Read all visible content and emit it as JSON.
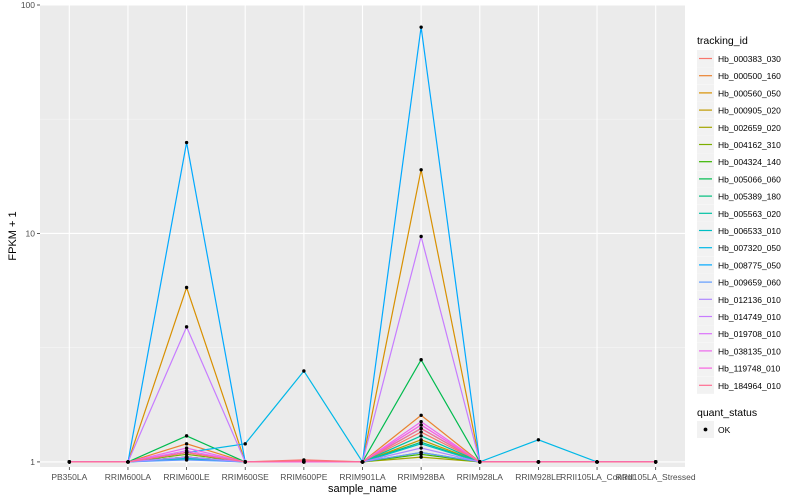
{
  "chart_data": {
    "type": "line",
    "xlabel": "sample_name",
    "ylabel": "FPKM + 1",
    "y_scale": "log10",
    "ylim": [
      0.95,
      100
    ],
    "y_ticks": [
      {
        "value": 1,
        "label": "1"
      },
      {
        "value": 10,
        "label": "10"
      },
      {
        "value": 100,
        "label": "100"
      }
    ],
    "grid": true,
    "categories": [
      "PB350LA",
      "RRIM600LA",
      "RRIM600LE",
      "RRIM600SE",
      "RRIM600PE",
      "RRIM901LA",
      "RRIM928BA",
      "RRIM928LA",
      "RRIM928LE",
      "RRII105LA_Control",
      "RRII105LA_Stressed"
    ],
    "series": [
      {
        "name": "Hb_000383_030",
        "color": "#F8766D",
        "values": [
          1,
          1,
          1.05,
          1,
          1.02,
          1,
          1.35,
          1,
          1,
          1,
          1
        ]
      },
      {
        "name": "Hb_000500_160",
        "color": "#EA8331",
        "values": [
          1,
          1,
          1.2,
          1,
          1,
          1,
          1.6,
          1,
          1,
          1,
          1
        ]
      },
      {
        "name": "Hb_000560_050",
        "color": "#D89000",
        "values": [
          1,
          1,
          5.8,
          1,
          1,
          1,
          19,
          1,
          1,
          1,
          1
        ]
      },
      {
        "name": "Hb_000905_020",
        "color": "#C09B00",
        "values": [
          1,
          1,
          1.1,
          1,
          1,
          1,
          1.25,
          1,
          1,
          1,
          1
        ]
      },
      {
        "name": "Hb_002659_020",
        "color": "#A3A500",
        "values": [
          1,
          1,
          1.05,
          1,
          1,
          1,
          1.05,
          1,
          1,
          1,
          1
        ]
      },
      {
        "name": "Hb_004162_310",
        "color": "#7CAE00",
        "values": [
          1,
          1,
          1.08,
          1,
          1,
          1,
          1.1,
          1,
          1,
          1,
          1
        ]
      },
      {
        "name": "Hb_004324_140",
        "color": "#39B600",
        "values": [
          1,
          1,
          1.05,
          1,
          1,
          1,
          1.08,
          1,
          1,
          1,
          1
        ]
      },
      {
        "name": "Hb_005066_060",
        "color": "#00BB4E",
        "values": [
          1,
          1,
          1.3,
          1,
          1,
          1,
          2.8,
          1,
          1,
          1,
          1
        ]
      },
      {
        "name": "Hb_005389_180",
        "color": "#00BF7D",
        "values": [
          1,
          1,
          1.05,
          1,
          1,
          1,
          1.22,
          1,
          1,
          1,
          1
        ]
      },
      {
        "name": "Hb_005563_020",
        "color": "#00C1A3",
        "values": [
          1,
          1,
          1.03,
          1,
          1,
          1,
          1.3,
          1,
          1,
          1,
          1
        ]
      },
      {
        "name": "Hb_006533_010",
        "color": "#00BFC4",
        "values": [
          1,
          1,
          1.04,
          1,
          1,
          1,
          1.2,
          1,
          1,
          1,
          1
        ]
      },
      {
        "name": "Hb_007320_050",
        "color": "#00B8E7",
        "values": [
          1,
          1,
          1.1,
          1.2,
          2.5,
          1,
          1.4,
          1,
          1.25,
          1,
          1
        ]
      },
      {
        "name": "Hb_008775_050",
        "color": "#00A9FF",
        "values": [
          1,
          1,
          25,
          1,
          1,
          1,
          80,
          1,
          1,
          1,
          1
        ]
      },
      {
        "name": "Hb_009659_060",
        "color": "#619CFF",
        "values": [
          1,
          1,
          1.02,
          1,
          1,
          1,
          1.1,
          1,
          1,
          1,
          1
        ]
      },
      {
        "name": "Hb_012136_010",
        "color": "#AE87FF",
        "values": [
          1,
          1,
          1.05,
          1,
          1,
          1,
          1.15,
          1,
          1,
          1,
          1
        ]
      },
      {
        "name": "Hb_014749_010",
        "color": "#C77CFF",
        "values": [
          1,
          1,
          3.9,
          1,
          1,
          1,
          9.7,
          1,
          1,
          1,
          1
        ]
      },
      {
        "name": "Hb_019708_010",
        "color": "#DB72FB",
        "values": [
          1,
          1,
          1.12,
          1,
          1,
          1,
          1.45,
          1,
          1,
          1,
          1
        ]
      },
      {
        "name": "Hb_038135_010",
        "color": "#ED68ED",
        "values": [
          1,
          1,
          1.15,
          1,
          1,
          1,
          1.5,
          1,
          1,
          1,
          1
        ]
      },
      {
        "name": "Hb_119748_010",
        "color": "#F763E0",
        "values": [
          1,
          1,
          1.1,
          1,
          1,
          1,
          1.45,
          1,
          1,
          1,
          1
        ]
      },
      {
        "name": "Hb_184964_010",
        "color": "#FF6C91",
        "values": [
          1,
          1,
          1.1,
          1,
          1.01,
          1,
          1.4,
          1,
          1,
          1,
          1
        ]
      }
    ],
    "legend": {
      "position": "right",
      "title": "tracking_id",
      "status_title": "quant_status",
      "status_label": "OK"
    },
    "point_color": "#000000"
  }
}
